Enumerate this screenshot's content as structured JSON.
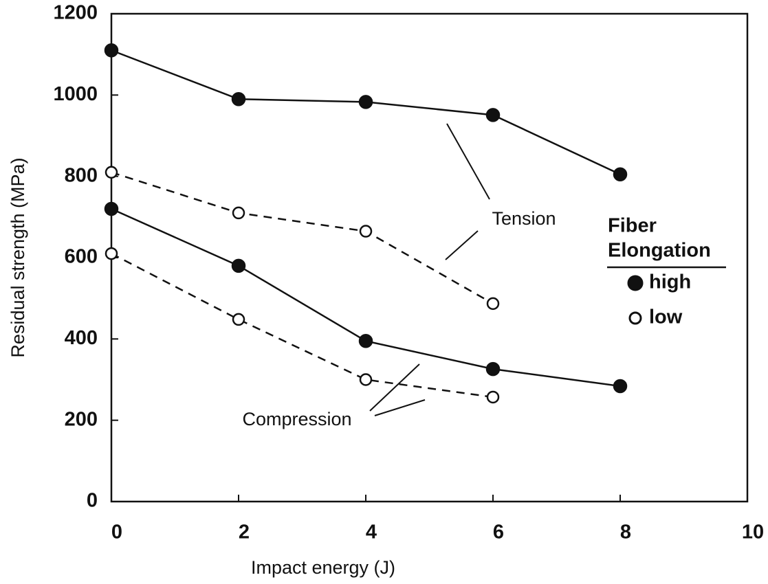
{
  "chart_data": {
    "type": "line",
    "xlabel": "Impact energy (J)",
    "ylabel": "Residual strength (MPa)",
    "xlim": [
      0,
      10
    ],
    "ylim": [
      0,
      1200
    ],
    "xticks": [
      0,
      2,
      4,
      6,
      8,
      10
    ],
    "yticks": [
      0,
      200,
      400,
      600,
      800,
      1000,
      1200
    ],
    "grid": false,
    "color": "#111111",
    "series": [
      {
        "x": [
          0,
          2,
          4,
          6,
          8
        ],
        "values": [
          1110,
          990,
          983,
          951,
          805
        ],
        "marker": "filled",
        "line": "solid"
      },
      {
        "x": [
          0,
          2,
          4,
          6
        ],
        "values": [
          810,
          710,
          665,
          487
        ],
        "marker": "open",
        "line": "dashed"
      },
      {
        "x": [
          0,
          2,
          4,
          6,
          8
        ],
        "values": [
          720,
          580,
          395,
          326,
          284
        ],
        "marker": "filled",
        "line": "solid"
      },
      {
        "x": [
          0,
          2,
          4,
          6
        ],
        "values": [
          610,
          448,
          300,
          257
        ],
        "marker": "open",
        "line": "dashed"
      }
    ],
    "annotations": [
      "Tension",
      "Compression"
    ],
    "legend": {
      "title": [
        "Fiber",
        "Elongation"
      ],
      "position": "right",
      "entries": [
        {
          "label": "high",
          "marker": "filled"
        },
        {
          "label": "low",
          "marker": "open"
        }
      ]
    }
  }
}
